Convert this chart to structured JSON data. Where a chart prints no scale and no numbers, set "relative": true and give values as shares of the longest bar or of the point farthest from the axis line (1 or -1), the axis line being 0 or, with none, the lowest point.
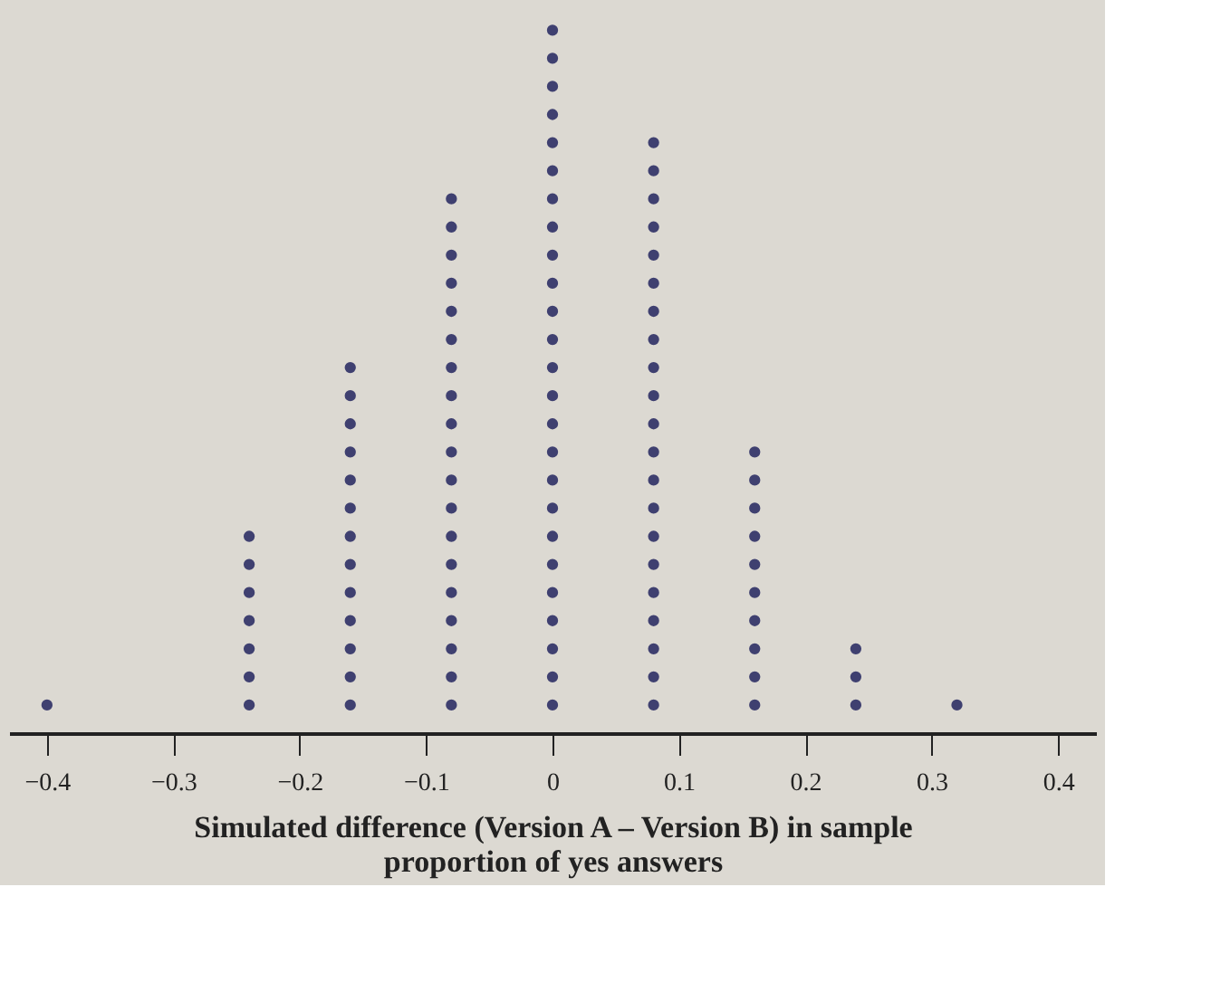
{
  "chart_data": {
    "type": "scatter",
    "xlabel": "Simulated difference (Version A – Version B) in sample proportion of yes answers",
    "x": [
      -0.4,
      -0.24,
      -0.24,
      -0.24,
      -0.24,
      -0.24,
      -0.24,
      -0.24,
      -0.16,
      -0.16,
      -0.16,
      -0.16,
      -0.16,
      -0.16,
      -0.16,
      -0.16,
      -0.16,
      -0.16,
      -0.16,
      -0.16,
      -0.16,
      -0.08,
      -0.08,
      -0.08,
      -0.08,
      -0.08,
      -0.08,
      -0.08,
      -0.08,
      -0.08,
      -0.08,
      -0.08,
      -0.08,
      -0.08,
      -0.08,
      -0.08,
      -0.08,
      -0.08,
      -0.08,
      -0.08,
      0,
      0,
      0,
      0,
      0,
      0,
      0,
      0,
      0,
      0,
      0,
      0,
      0,
      0,
      0,
      0,
      0,
      0,
      0,
      0,
      0,
      0,
      0,
      0,
      0,
      0.08,
      0.08,
      0.08,
      0.08,
      0.08,
      0.08,
      0.08,
      0.08,
      0.08,
      0.08,
      0.08,
      0.08,
      0.08,
      0.08,
      0.08,
      0.08,
      0.08,
      0.08,
      0.08,
      0.08,
      0.08,
      0.16,
      0.16,
      0.16,
      0.16,
      0.16,
      0.16,
      0.16,
      0.16,
      0.16,
      0.16,
      0.24,
      0.24,
      0.24,
      0.32
    ],
    "values": [
      0.04,
      0.04,
      0.08,
      0.12,
      0.16,
      0.2,
      0.24,
      0.28,
      0.04,
      0.08,
      0.12,
      0.16,
      0.2,
      0.24,
      0.28,
      0.32,
      0.36,
      0.4,
      0.44,
      0.48,
      0.52,
      0.04,
      0.08,
      0.12,
      0.16,
      0.2,
      0.24,
      0.28,
      0.32,
      0.36,
      0.4,
      0.44,
      0.48,
      0.52,
      0.56,
      0.6,
      0.64,
      0.68,
      0.72,
      0.76,
      0.04,
      0.08,
      0.12,
      0.16,
      0.2,
      0.24,
      0.28,
      0.32,
      0.36,
      0.4,
      0.44,
      0.48,
      0.52,
      0.56,
      0.6,
      0.64,
      0.68,
      0.72,
      0.76,
      0.8,
      0.84,
      0.88,
      0.92,
      0.96,
      1,
      0.04,
      0.08,
      0.12,
      0.16,
      0.2,
      0.24,
      0.28,
      0.32,
      0.36,
      0.4,
      0.44,
      0.48,
      0.52,
      0.56,
      0.6,
      0.64,
      0.68,
      0.72,
      0.76,
      0.8,
      0.84,
      0.04,
      0.08,
      0.12,
      0.16,
      0.2,
      0.24,
      0.28,
      0.32,
      0.36,
      0.4,
      0.04,
      0.08,
      0.12,
      0.04
    ],
    "relative": true,
    "color": "#3f4070",
    "marker": "circle",
    "xlim": [
      -0.43,
      0.43
    ],
    "xticks": [
      {
        "value": -0.4,
        "label": "−0.4"
      },
      {
        "value": -0.3,
        "label": "−0.3"
      },
      {
        "value": -0.2,
        "label": "−0.2"
      },
      {
        "value": -0.1,
        "label": "−0.1"
      },
      0,
      0.1,
      0.2,
      0.3,
      0.4
    ],
    "tick_labels": "x",
    "grid": false
  }
}
